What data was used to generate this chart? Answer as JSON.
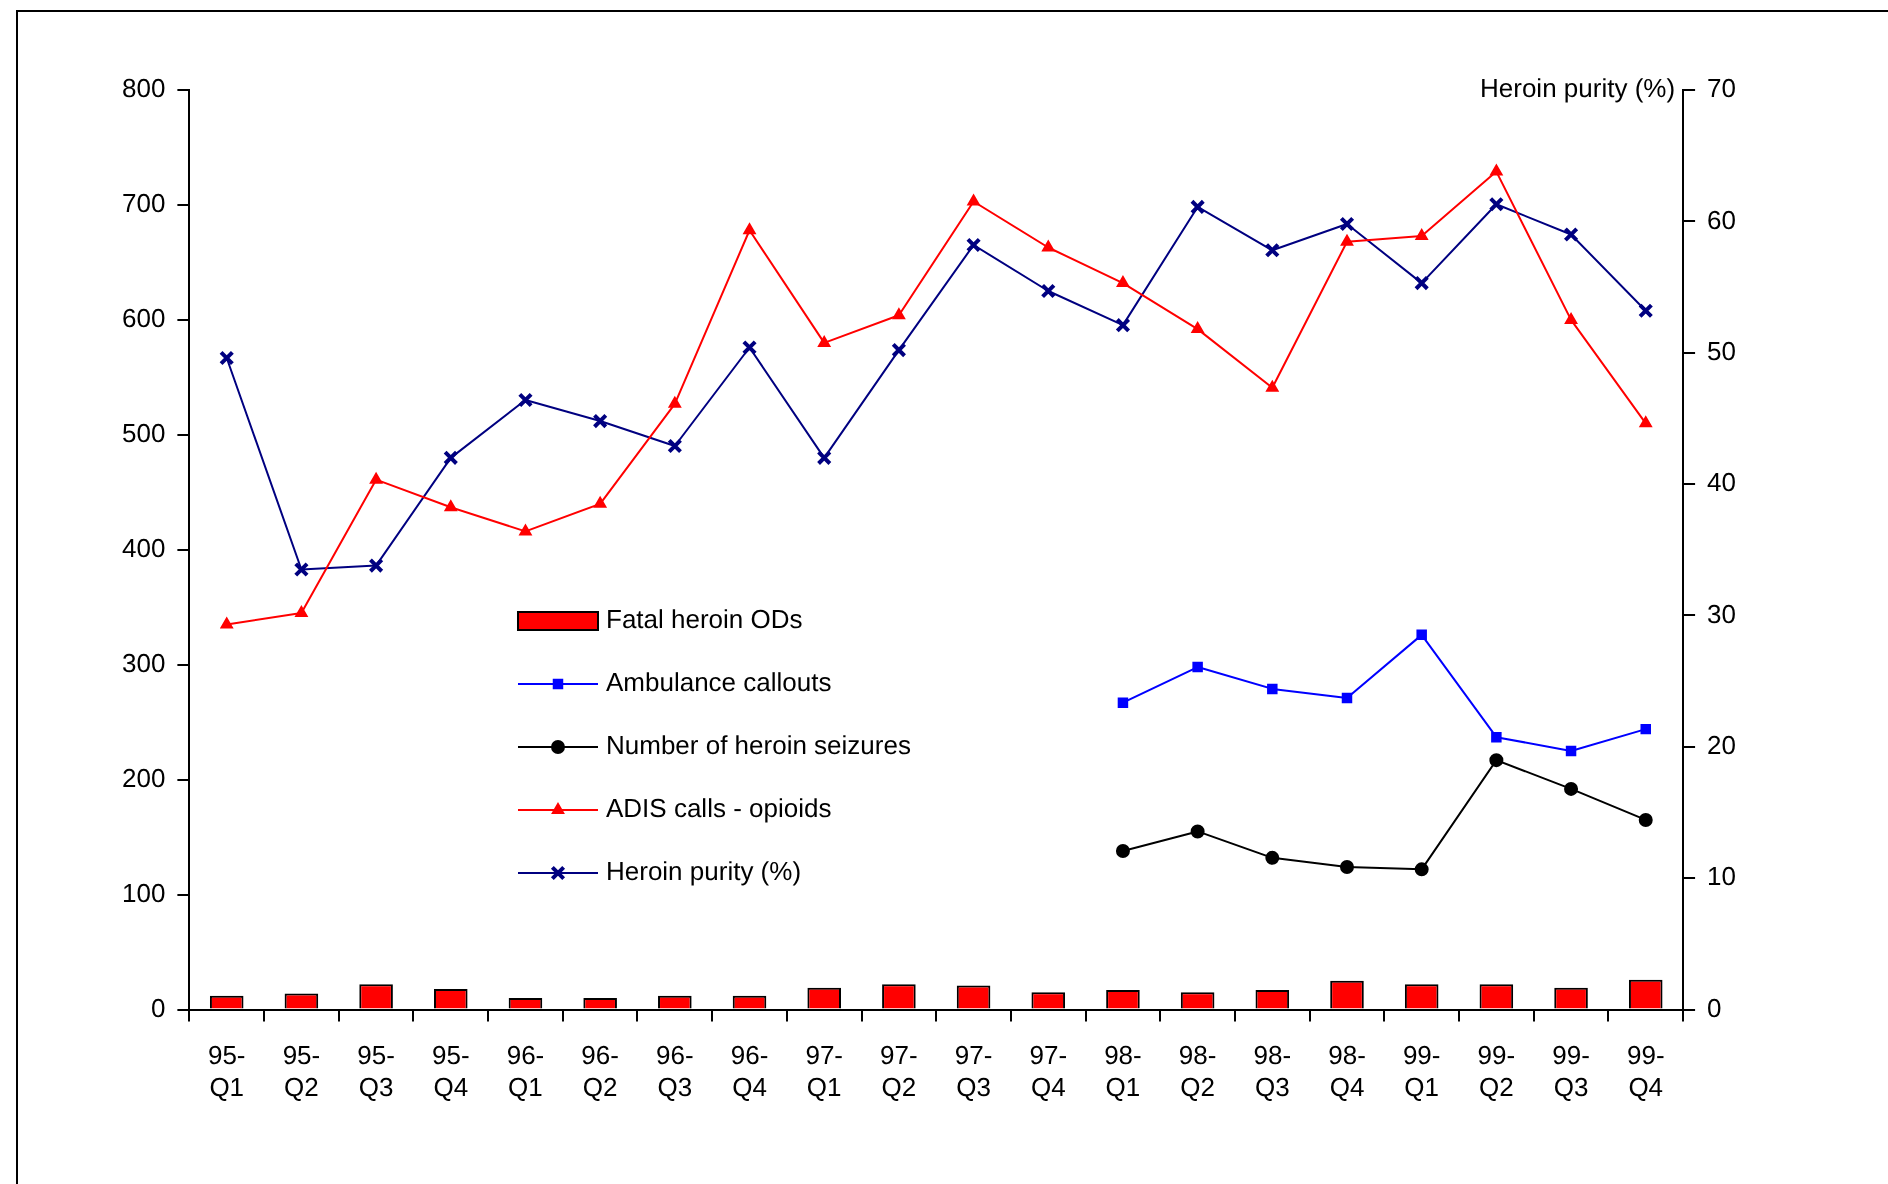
{
  "chart_data": {
    "type": "line",
    "y2label": "Heroin purity (%)",
    "categories": [
      "95-Q1",
      "95-Q2",
      "95-Q3",
      "95-Q4",
      "96-Q1",
      "96-Q2",
      "96-Q3",
      "96-Q4",
      "97-Q1",
      "97-Q2",
      "97-Q3",
      "97-Q4",
      "98-Q1",
      "98-Q2",
      "98-Q3",
      "98-Q4",
      "99-Q1",
      "99-Q2",
      "99-Q3",
      "99-Q4"
    ],
    "series": [
      {
        "name": "Fatal heroin ODs",
        "type": "bar",
        "color": "#ff0000",
        "values": [
          12,
          14,
          22,
          18,
          10,
          10,
          12,
          12,
          19,
          22,
          21,
          15,
          17,
          15,
          17,
          25,
          22,
          22,
          19,
          26
        ]
      },
      {
        "name": "Ambulance callouts",
        "color": "#0000ff",
        "marker": "square",
        "values": [
          null,
          null,
          null,
          null,
          null,
          null,
          null,
          null,
          null,
          null,
          null,
          null,
          267,
          298,
          279,
          271,
          326,
          237,
          225,
          244
        ]
      },
      {
        "name": "Number of heroin seizures",
        "color": "#000000",
        "marker": "circle",
        "values": [
          null,
          null,
          null,
          null,
          null,
          null,
          null,
          null,
          null,
          null,
          null,
          null,
          138,
          155,
          132,
          124,
          122,
          217,
          192,
          165
        ]
      },
      {
        "name": "ADIS calls - opioids",
        "color": "#ff0000",
        "marker": "triangle",
        "values": [
          335,
          345,
          461,
          437,
          416,
          440,
          527,
          678,
          580,
          604,
          703,
          663,
          632,
          592,
          541,
          668,
          673,
          729,
          600,
          510
        ]
      },
      {
        "name": "Heroin purity (%)",
        "axis": "y2",
        "color": "#000080",
        "marker": "cross",
        "values": [
          49.6,
          33.5,
          33.8,
          42.0,
          46.4,
          44.8,
          42.9,
          50.4,
          42.0,
          50.2,
          58.2,
          54.7,
          52.1,
          61.1,
          57.8,
          59.8,
          55.3,
          61.3,
          59.0,
          53.2
        ]
      }
    ],
    "ylim": [
      0,
      800
    ],
    "yticks": [
      0,
      100,
      200,
      300,
      400,
      500,
      600,
      700,
      800
    ],
    "y2lim": [
      0,
      70
    ],
    "y2ticks": [
      0,
      10,
      20,
      30,
      40,
      50,
      60,
      70
    ],
    "grid": false,
    "legend": "center"
  }
}
